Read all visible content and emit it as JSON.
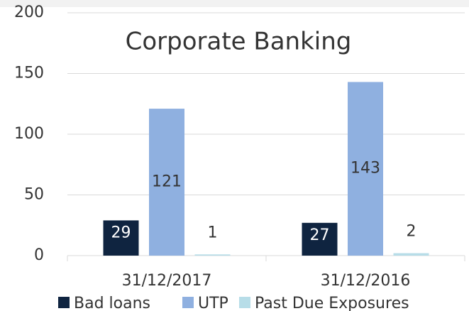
{
  "chart_data": {
    "type": "bar",
    "title": "Corporate Banking",
    "categories": [
      "31/12/2017",
      "31/12/2016"
    ],
    "series": [
      {
        "name": "Bad loans",
        "color": "#0f2440",
        "values": [
          29,
          27
        ]
      },
      {
        "name": "UTP",
        "color": "#8fb0e0",
        "values": [
          121,
          143
        ]
      },
      {
        "name": "Past Due Exposures",
        "color": "#b7dde8",
        "values": [
          1,
          2
        ]
      }
    ],
    "ylim": [
      0,
      200
    ],
    "yticks": [
      0,
      50,
      100,
      150,
      200
    ],
    "grid": true,
    "legend": "bottom"
  }
}
